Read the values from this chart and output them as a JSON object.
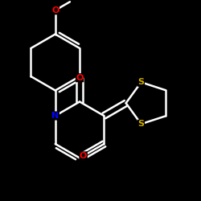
{
  "background_color": "#000000",
  "bond_color": "#ffffff",
  "atom_colors": {
    "O": "#ff0000",
    "N": "#0000ff",
    "S": "#ccaa00"
  },
  "bond_width": 1.8,
  "figsize": [
    2.5,
    2.5
  ],
  "dpi": 100
}
